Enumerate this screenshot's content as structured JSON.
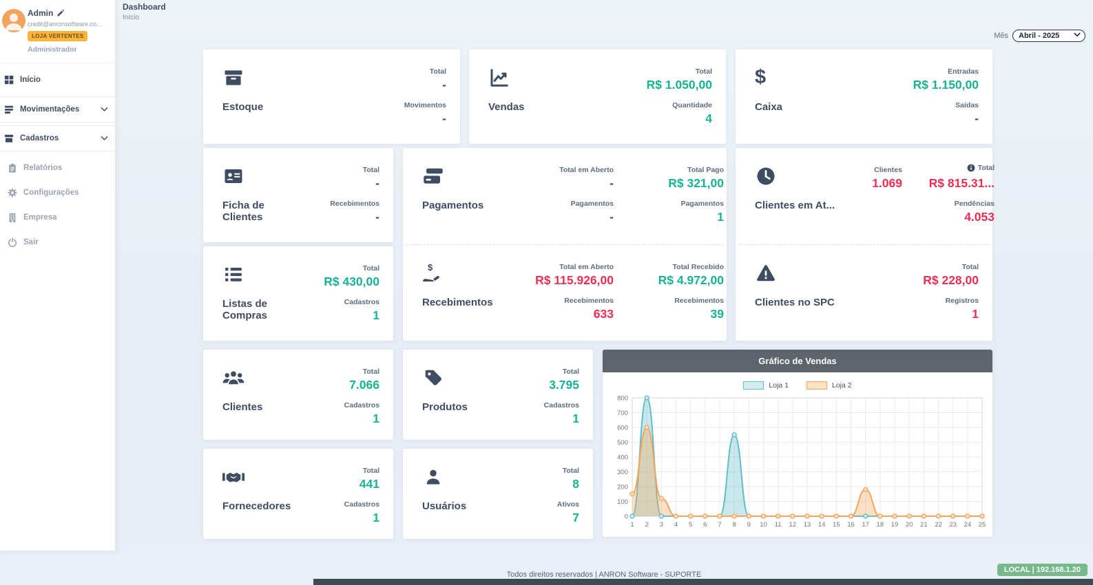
{
  "colors": {
    "accent_teal": "#17b293",
    "accent_red": "#ee2d52",
    "badge_orange": "#f9b53b",
    "env_badge_green": "#76b98b",
    "chart_header_gray": "#5d646b",
    "sidebar_text_dark": "#3f4d63",
    "sidebar_text_gray": "#9aa5b1"
  },
  "icons": {
    "dollar": "$"
  },
  "sidebar": {
    "user": {
      "name": "Admin",
      "email": "credit@anronsoftware.co...",
      "store_badge": "LOJA VERTENTES",
      "role": "Administrador"
    },
    "items": [
      {
        "label": "Início"
      },
      {
        "label": "Movimentações"
      },
      {
        "label": "Cadastros"
      },
      {
        "label": "Relatórios"
      },
      {
        "label": "Configurações"
      },
      {
        "label": "Empresa"
      },
      {
        "label": "Sair"
      }
    ]
  },
  "header": {
    "title": "Dashboard",
    "breadcrumb": "Início",
    "month_label": "Mês",
    "month_value": "Abril - 2025"
  },
  "cards": {
    "estoque": {
      "title": "Estoque",
      "stats": [
        {
          "label": "Total",
          "value": "-"
        },
        {
          "label": "Movimentos",
          "value": "-"
        }
      ]
    },
    "vendas": {
      "title": "Vendas",
      "stats": [
        {
          "label": "Total",
          "value": "R$ 1.050,00"
        },
        {
          "label": "Quantidade",
          "value": "4"
        }
      ]
    },
    "caixa": {
      "title": "Caixa",
      "stats": [
        {
          "label": "Entradas",
          "value": "R$ 1.150,00"
        },
        {
          "label": "Saídas",
          "value": "-"
        }
      ]
    },
    "ficha_clientes": {
      "title": "Ficha de Clientes",
      "stats": [
        {
          "label": "Total",
          "value": "-"
        },
        {
          "label": "Recebimentos",
          "value": "-"
        }
      ]
    },
    "listas_compras": {
      "title": "Listas de Compras",
      "stats": [
        {
          "label": "Total",
          "value": "R$ 430,00"
        },
        {
          "label": "Cadastros",
          "value": "1"
        }
      ]
    },
    "pagamentos": {
      "title": "Pagamentos",
      "col1": [
        {
          "label": "Total em Aberto",
          "value": "-"
        },
        {
          "label": "Pagamentos",
          "value": "-"
        }
      ],
      "col2": [
        {
          "label": "Total Pago",
          "value": "R$ 321,00"
        },
        {
          "label": "Pagamentos",
          "value": "1"
        }
      ]
    },
    "recebimentos": {
      "title": "Recebimentos",
      "col1": [
        {
          "label": "Total em Aberto",
          "value": "R$ 115.926,00"
        },
        {
          "label": "Recebimentos",
          "value": "633"
        }
      ],
      "col2": [
        {
          "label": "Total Recebido",
          "value": "R$ 4.972,00"
        },
        {
          "label": "Recebimentos",
          "value": "39"
        }
      ]
    },
    "clientes_atraso": {
      "title": "Clientes em At...",
      "col1": [
        {
          "label": "Clientes",
          "value": "1.069"
        }
      ],
      "col2": [
        {
          "label": "Total",
          "value": "R$ 815.31..."
        },
        {
          "label": "Pendências",
          "value": "4.053"
        }
      ]
    },
    "clientes_spc": {
      "title": "Clientes no SPC",
      "stats": [
        {
          "label": "Total",
          "value": "R$ 228,00"
        },
        {
          "label": "Registros",
          "value": "1"
        }
      ]
    },
    "clientes": {
      "title": "Clientes",
      "stats": [
        {
          "label": "Total",
          "value": "7.066"
        },
        {
          "label": "Cadastros",
          "value": "1"
        }
      ]
    },
    "produtos": {
      "title": "Produtos",
      "stats": [
        {
          "label": "Total",
          "value": "3.795"
        },
        {
          "label": "Cadastros",
          "value": "1"
        }
      ]
    },
    "fornecedores": {
      "title": "Fornecedores",
      "stats": [
        {
          "label": "Total",
          "value": "441"
        },
        {
          "label": "Cadastros",
          "value": "1"
        }
      ]
    },
    "usuarios": {
      "title": "Usuários",
      "stats": [
        {
          "label": "Total",
          "value": "8"
        },
        {
          "label": "Ativos",
          "value": "7"
        }
      ]
    }
  },
  "chart_data": {
    "type": "area",
    "title": "Gráfico de Vendas",
    "x": [
      1,
      2,
      3,
      4,
      5,
      6,
      7,
      8,
      9,
      10,
      11,
      12,
      13,
      14,
      15,
      16,
      17,
      18,
      19,
      20,
      21,
      22,
      23,
      24,
      25
    ],
    "series": [
      {
        "name": "Loja 1",
        "values": [
          0,
          800,
          0,
          0,
          0,
          0,
          0,
          550,
          0,
          0,
          0,
          0,
          0,
          0,
          0,
          0,
          0,
          0,
          0,
          0,
          0,
          0,
          0,
          0,
          0
        ],
        "color": "#62bcc9",
        "marker_fill": "#cdeaed",
        "swatch_fill": "#d3ecef"
      },
      {
        "name": "Loja 2",
        "values": [
          150,
          600,
          120,
          0,
          0,
          0,
          0,
          0,
          0,
          0,
          0,
          0,
          0,
          0,
          0,
          0,
          180,
          0,
          0,
          0,
          0,
          0,
          0,
          0,
          0
        ],
        "color": "#f5a55a",
        "marker_fill": "#fbe0c2",
        "swatch_fill": "#fbe3c6"
      }
    ],
    "ylim": [
      0,
      800
    ],
    "ytick_step": 100,
    "grid": true,
    "legend_position": "top"
  },
  "footer": {
    "copyright": "Todos direitos reservados | ANRON Software - SUPORTE",
    "environment": "LOCAL | 192.168.1.20"
  }
}
